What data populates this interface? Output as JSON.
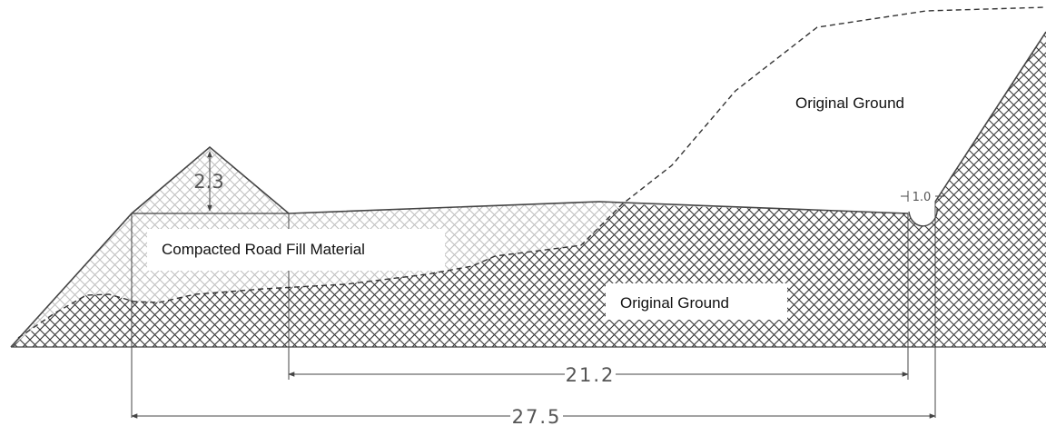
{
  "labels": {
    "fill_material": "Compacted Road Fill Material",
    "ground_lower": "Original Ground",
    "ground_upper": "Original Ground"
  },
  "dimensions": {
    "berm_height": "2.3",
    "ditch_width": "1.0",
    "road_width": "21.2",
    "total_width": "27.5"
  },
  "colors": {
    "outline": "#444444",
    "ground_hatch": "#333333",
    "fill_hatch": "#bdbdbd"
  }
}
